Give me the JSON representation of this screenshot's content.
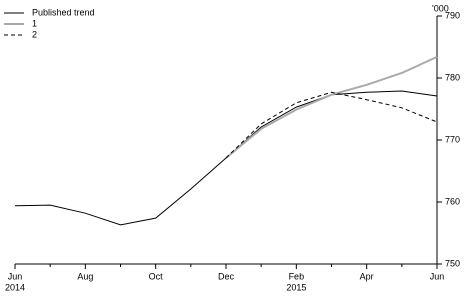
{
  "chart_data": {
    "type": "line",
    "y_unit": "'000",
    "categories": [
      "Jun",
      null,
      "Aug",
      null,
      "Oct",
      null,
      "Dec",
      null,
      "Feb",
      null,
      "Apr",
      null,
      "Jun"
    ],
    "category_years": [
      "2014",
      null,
      null,
      null,
      null,
      null,
      null,
      null,
      "2015",
      null,
      null,
      null,
      null
    ],
    "series": [
      {
        "name": "Published trend",
        "color": "#000000",
        "dash": "none",
        "values": [
          759.4,
          759.5,
          758.2,
          756.3,
          757.4,
          762.1,
          767.1,
          772.1,
          775.3,
          777.3,
          777.7,
          777.9,
          777.1
        ]
      },
      {
        "name": "1",
        "color": "#aaaaaa",
        "dash": "none",
        "values": [
          null,
          null,
          null,
          null,
          null,
          null,
          767.1,
          771.8,
          774.9,
          777.3,
          778.9,
          780.8,
          783.4
        ]
      },
      {
        "name": "2",
        "color": "#000000",
        "dash": "4 3",
        "values": [
          null,
          null,
          null,
          null,
          null,
          null,
          767.1,
          772.6,
          776.0,
          777.7,
          776.5,
          775.2,
          772.9
        ]
      }
    ],
    "ylim": [
      750,
      790
    ],
    "yticks": [
      750,
      760,
      770,
      780,
      790
    ],
    "legend": "top-left"
  }
}
